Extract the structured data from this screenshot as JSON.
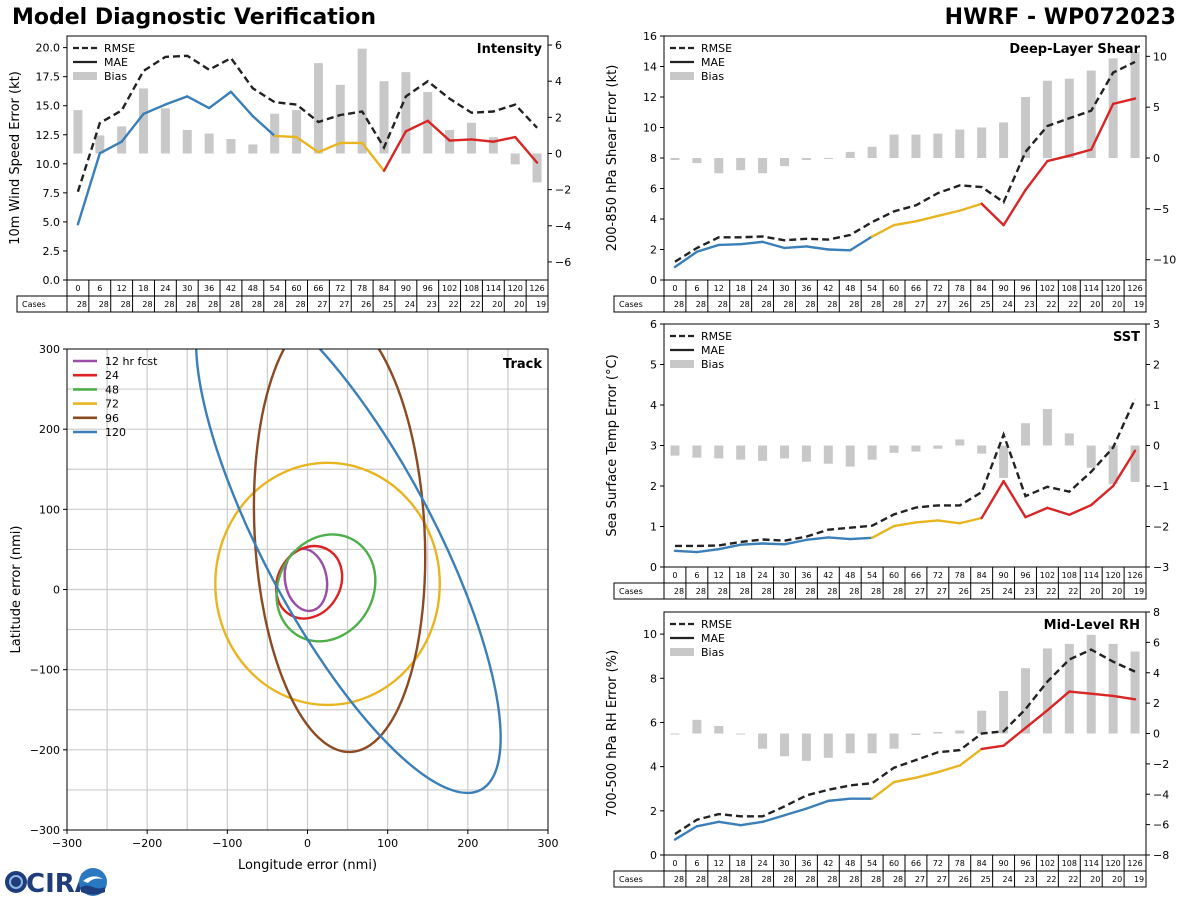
{
  "header": {
    "title": "Model Diagnostic Verification",
    "model_storm": "HWRF - WP072023"
  },
  "logo": {
    "text": "CIRA"
  },
  "colors": {
    "rmse": "#222222",
    "mae": "#222222",
    "bias": "#c8c8c8",
    "seg_early": "#3a7fb8",
    "seg_mid": "#e8b520",
    "seg_late": "#d92525",
    "grid": "#cccccc"
  },
  "legend": {
    "rmse": "RMSE",
    "mae": "MAE",
    "bias": "Bias"
  },
  "table": {
    "cases_label": "Cases",
    "hours": [
      0,
      6,
      12,
      18,
      24,
      30,
      36,
      42,
      48,
      54,
      60,
      66,
      72,
      78,
      84,
      90,
      96,
      102,
      108,
      114,
      120,
      126
    ],
    "cases": [
      28,
      28,
      28,
      28,
      28,
      28,
      28,
      28,
      28,
      28,
      28,
      27,
      27,
      26,
      25,
      24,
      23,
      22,
      22,
      20,
      20,
      19
    ]
  },
  "chart_data": [
    {
      "id": "intensity",
      "type": "line",
      "title": "Intensity",
      "ylabel": "10m Wind Speed Error (kt)",
      "ylim": [
        0,
        21
      ],
      "y_ticks": [
        0.0,
        2.5,
        5.0,
        7.5,
        10.0,
        12.5,
        15.0,
        17.5,
        20.0
      ],
      "y2lim": [
        -7,
        6.5
      ],
      "y2_ticks": [
        -6,
        -4,
        -2,
        0,
        2,
        4,
        6
      ],
      "x": [
        0,
        6,
        12,
        18,
        24,
        30,
        36,
        42,
        48,
        54,
        60,
        66,
        72,
        78,
        84,
        90,
        96,
        102,
        108,
        114,
        120,
        126
      ],
      "series": [
        {
          "name": "RMSE",
          "values": [
            7.6,
            13.5,
            14.6,
            18.0,
            19.2,
            19.3,
            18.1,
            19.1,
            16.5,
            15.3,
            15.1,
            13.6,
            14.2,
            14.5,
            11.4,
            15.8,
            17.1,
            15.6,
            14.4,
            14.5,
            15.1,
            13.1
          ]
        },
        {
          "name": "MAE",
          "values": [
            4.8,
            10.9,
            11.9,
            14.3,
            15.1,
            15.8,
            14.8,
            16.2,
            14.1,
            12.4,
            12.3,
            11.0,
            11.8,
            11.8,
            9.4,
            12.8,
            13.7,
            12.0,
            12.1,
            11.9,
            12.3,
            10.1
          ]
        },
        {
          "name": "Bias",
          "values": [
            2.4,
            1.0,
            1.5,
            3.6,
            2.5,
            1.3,
            1.1,
            0.8,
            0.5,
            2.2,
            2.4,
            5.0,
            3.8,
            5.8,
            4.0,
            4.5,
            3.4,
            1.3,
            1.7,
            0.9,
            -0.6,
            -1.6
          ]
        }
      ]
    },
    {
      "id": "shear",
      "type": "line",
      "title": "Deep-Layer Shear",
      "ylabel": "200-850 hPa Shear Error (kt)",
      "ylim": [
        0,
        16
      ],
      "y_ticks": [
        0,
        2,
        4,
        6,
        8,
        10,
        12,
        14,
        16
      ],
      "y2lim": [
        -12,
        12
      ],
      "y2_ticks": [
        -10,
        -5,
        0,
        5,
        10
      ],
      "x": [
        0,
        6,
        12,
        18,
        24,
        30,
        36,
        42,
        48,
        54,
        60,
        66,
        72,
        78,
        84,
        90,
        96,
        102,
        108,
        114,
        120,
        126
      ],
      "series": [
        {
          "name": "RMSE",
          "values": [
            1.2,
            2.1,
            2.8,
            2.8,
            2.85,
            2.6,
            2.7,
            2.65,
            2.95,
            3.8,
            4.5,
            4.9,
            5.7,
            6.2,
            6.1,
            5.1,
            8.4,
            10.1,
            10.6,
            11.1,
            13.6,
            14.3
          ]
        },
        {
          "name": "MAE",
          "values": [
            0.85,
            1.85,
            2.3,
            2.35,
            2.5,
            2.1,
            2.2,
            2.0,
            1.95,
            2.85,
            3.6,
            3.85,
            4.2,
            4.55,
            5.0,
            3.6,
            5.9,
            7.8,
            8.15,
            8.55,
            11.55,
            11.9
          ]
        },
        {
          "name": "Bias",
          "values": [
            -0.2,
            -0.5,
            -1.5,
            -1.2,
            -1.5,
            -0.8,
            -0.2,
            -0.1,
            0.6,
            1.1,
            2.3,
            2.3,
            2.4,
            2.8,
            3.0,
            3.5,
            6.0,
            7.6,
            7.8,
            8.6,
            9.8,
            10.4
          ]
        }
      ]
    },
    {
      "id": "sst",
      "type": "line",
      "title": "SST",
      "ylabel": "Sea Surface Temp Error (°C)",
      "ylim": [
        0,
        6
      ],
      "y_ticks": [
        0,
        1,
        2,
        3,
        4,
        5,
        6
      ],
      "y2lim": [
        -3,
        3
      ],
      "y2_ticks": [
        -3,
        -2,
        -1,
        0,
        1,
        2,
        3
      ],
      "x": [
        0,
        6,
        12,
        18,
        24,
        30,
        36,
        42,
        48,
        54,
        60,
        66,
        72,
        78,
        84,
        90,
        96,
        102,
        108,
        114,
        120,
        126
      ],
      "series": [
        {
          "name": "RMSE",
          "values": [
            0.52,
            0.52,
            0.53,
            0.62,
            0.68,
            0.65,
            0.75,
            0.92,
            0.97,
            1.02,
            1.3,
            1.47,
            1.52,
            1.52,
            1.85,
            3.27,
            1.75,
            1.98,
            1.86,
            2.35,
            2.95,
            4.15
          ]
        },
        {
          "name": "MAE",
          "values": [
            0.4,
            0.37,
            0.44,
            0.55,
            0.58,
            0.56,
            0.67,
            0.73,
            0.69,
            0.72,
            1.01,
            1.1,
            1.15,
            1.08,
            1.21,
            2.12,
            1.23,
            1.46,
            1.29,
            1.53,
            2.0,
            2.87
          ]
        },
        {
          "name": "Bias",
          "values": [
            -0.25,
            -0.3,
            -0.32,
            -0.35,
            -0.38,
            -0.32,
            -0.4,
            -0.45,
            -0.52,
            -0.35,
            -0.18,
            -0.15,
            -0.08,
            0.15,
            -0.2,
            -0.8,
            0.55,
            0.9,
            0.3,
            -0.55,
            -0.95,
            -0.9
          ]
        }
      ]
    },
    {
      "id": "rh",
      "type": "line",
      "title": "Mid-Level RH",
      "ylabel": "700-500 hPa RH Error (%)",
      "ylim": [
        0,
        11
      ],
      "y_ticks": [
        0,
        2,
        4,
        6,
        8,
        10
      ],
      "y2lim": [
        -8,
        8
      ],
      "y2_ticks": [
        -8,
        -6,
        -4,
        -2,
        0,
        2,
        4,
        6,
        8
      ],
      "x": [
        0,
        6,
        12,
        18,
        24,
        30,
        36,
        42,
        48,
        54,
        60,
        66,
        72,
        78,
        84,
        90,
        96,
        102,
        108,
        114,
        120,
        126
      ],
      "series": [
        {
          "name": "RMSE",
          "values": [
            0.95,
            1.6,
            1.85,
            1.75,
            1.75,
            2.2,
            2.7,
            2.95,
            3.15,
            3.25,
            3.95,
            4.3,
            4.65,
            4.75,
            5.5,
            5.6,
            6.6,
            7.85,
            8.85,
            9.3,
            8.75,
            8.3
          ]
        },
        {
          "name": "MAE",
          "values": [
            0.7,
            1.3,
            1.5,
            1.35,
            1.5,
            1.8,
            2.1,
            2.45,
            2.55,
            2.55,
            3.3,
            3.5,
            3.75,
            4.05,
            4.8,
            4.95,
            5.75,
            6.55,
            7.4,
            7.3,
            7.2,
            7.05
          ]
        },
        {
          "name": "Bias",
          "values": [
            0,
            0.9,
            0.5,
            0,
            -1.0,
            -1.5,
            -1.8,
            -1.6,
            -1.3,
            -1.3,
            -1.0,
            -0.1,
            0.1,
            0.2,
            1.5,
            2.8,
            4.3,
            5.6,
            5.9,
            6.5,
            5.9,
            5.4
          ]
        }
      ]
    },
    {
      "id": "track",
      "type": "ellipse",
      "title": "Track",
      "xlabel": "Longitude error (nmi)",
      "ylabel": "Latitude error (nmi)",
      "xlim": [
        -300,
        300
      ],
      "ylim": [
        -300,
        300
      ],
      "x_ticks": [
        -300,
        -200,
        -100,
        0,
        100,
        200,
        300
      ],
      "y_ticks": [
        -300,
        -200,
        -100,
        0,
        100,
        200,
        300
      ],
      "series": [
        {
          "name": "12 hr fcst",
          "color": "#9b4ea6",
          "cx": -2,
          "cy": 12,
          "rx": 26,
          "ry": 39,
          "angle": -10
        },
        {
          "name": "24",
          "color": "#dc2222",
          "cx": 2,
          "cy": 9,
          "rx": 39,
          "ry": 47,
          "angle": 30
        },
        {
          "name": "48",
          "color": "#4dae4a",
          "cx": 23,
          "cy": 2,
          "rx": 59,
          "ry": 69,
          "angle": 30
        },
        {
          "name": "72",
          "color": "#e8b520",
          "cx": 25,
          "cy": 7,
          "rx": 140,
          "ry": 151,
          "angle": 0
        },
        {
          "name": "96",
          "color": "#8b4a22",
          "cx": 40,
          "cy": 72,
          "rx": 106,
          "ry": 275,
          "angle": -3
        },
        {
          "name": "120",
          "color": "#3a7fb8",
          "cx": 51,
          "cy": 61,
          "rx": 106,
          "ry": 352,
          "angle": -28
        }
      ]
    }
  ]
}
